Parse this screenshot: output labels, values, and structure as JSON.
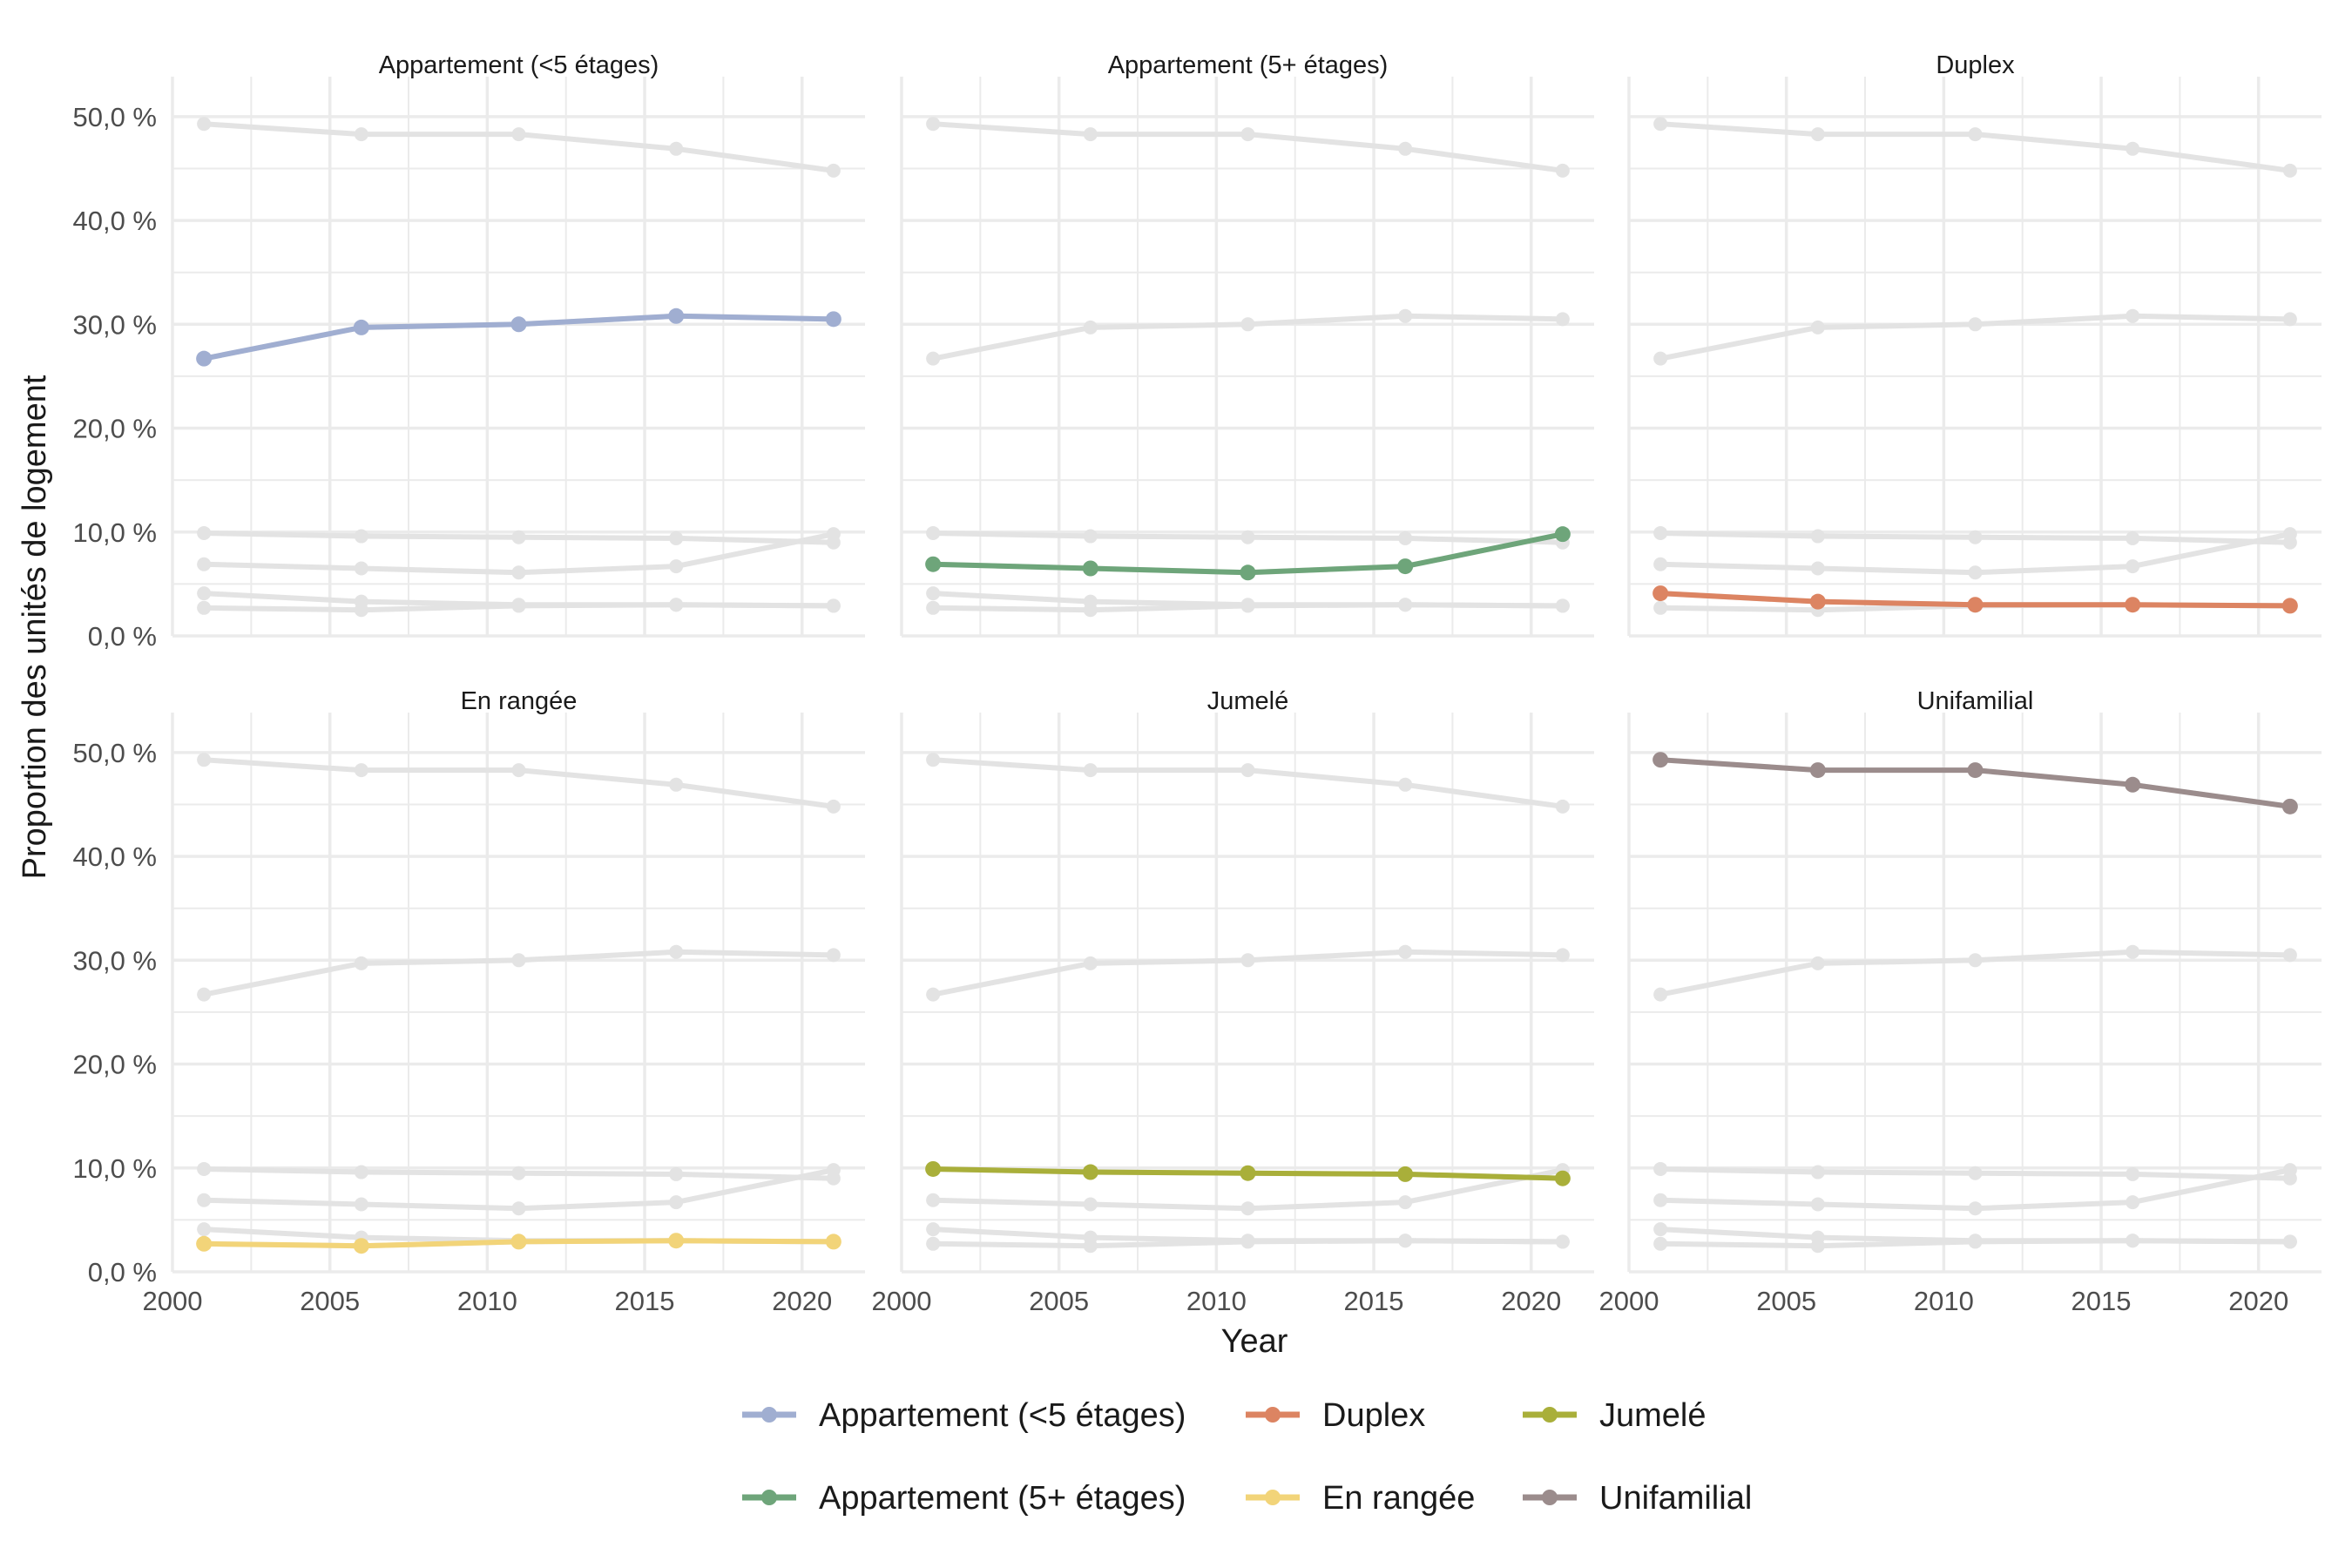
{
  "chart_data": {
    "type": "line",
    "layout": "facet-grid",
    "x": [
      2001,
      2006,
      2011,
      2016,
      2021
    ],
    "xticks": [
      "2000",
      "2005",
      "2010",
      "2015",
      "2020"
    ],
    "xlim": [
      2000,
      2022
    ],
    "ylim": [
      0,
      52
    ],
    "yticks": [
      "0,0 %",
      "10,0 %",
      "20,0 %",
      "30,0 %",
      "40,0 %",
      "50,0 %"
    ],
    "xlabel": "Year",
    "ylabel": "Proportion des unités de logement",
    "background_series_color": "#e3e3e3",
    "grid": true,
    "legend_position": "bottom",
    "series": [
      {
        "name": "Appartement (<5 étages)",
        "color": "#a0aed1",
        "values": [
          26.7,
          29.7,
          30.0,
          30.8,
          30.5
        ]
      },
      {
        "name": "Appartement (5+ étages)",
        "color": "#6ea57a",
        "values": [
          6.9,
          6.5,
          6.1,
          6.7,
          9.8
        ]
      },
      {
        "name": "Duplex",
        "color": "#dc8462",
        "values": [
          4.1,
          3.3,
          3.0,
          3.0,
          2.9
        ]
      },
      {
        "name": "En rangée",
        "color": "#f2d479",
        "values": [
          2.7,
          2.5,
          2.9,
          3.0,
          2.9
        ]
      },
      {
        "name": "Jumelé",
        "color": "#a9af3a",
        "values": [
          9.9,
          9.6,
          9.5,
          9.4,
          9.0
        ]
      },
      {
        "name": "Unifamilial",
        "color": "#9b8c8c",
        "values": [
          49.3,
          48.3,
          48.3,
          46.9,
          44.8
        ]
      }
    ],
    "facets": [
      "Appartement (<5 étages)",
      "Appartement (5+ étages)",
      "Duplex",
      "En rangée",
      "Jumelé",
      "Unifamilial"
    ],
    "legend_rows": [
      [
        "Appartement (<5 étages)",
        "Duplex",
        "Jumelé"
      ],
      [
        "Appartement (5+ étages)",
        "En rangée",
        "Unifamilial"
      ]
    ]
  }
}
